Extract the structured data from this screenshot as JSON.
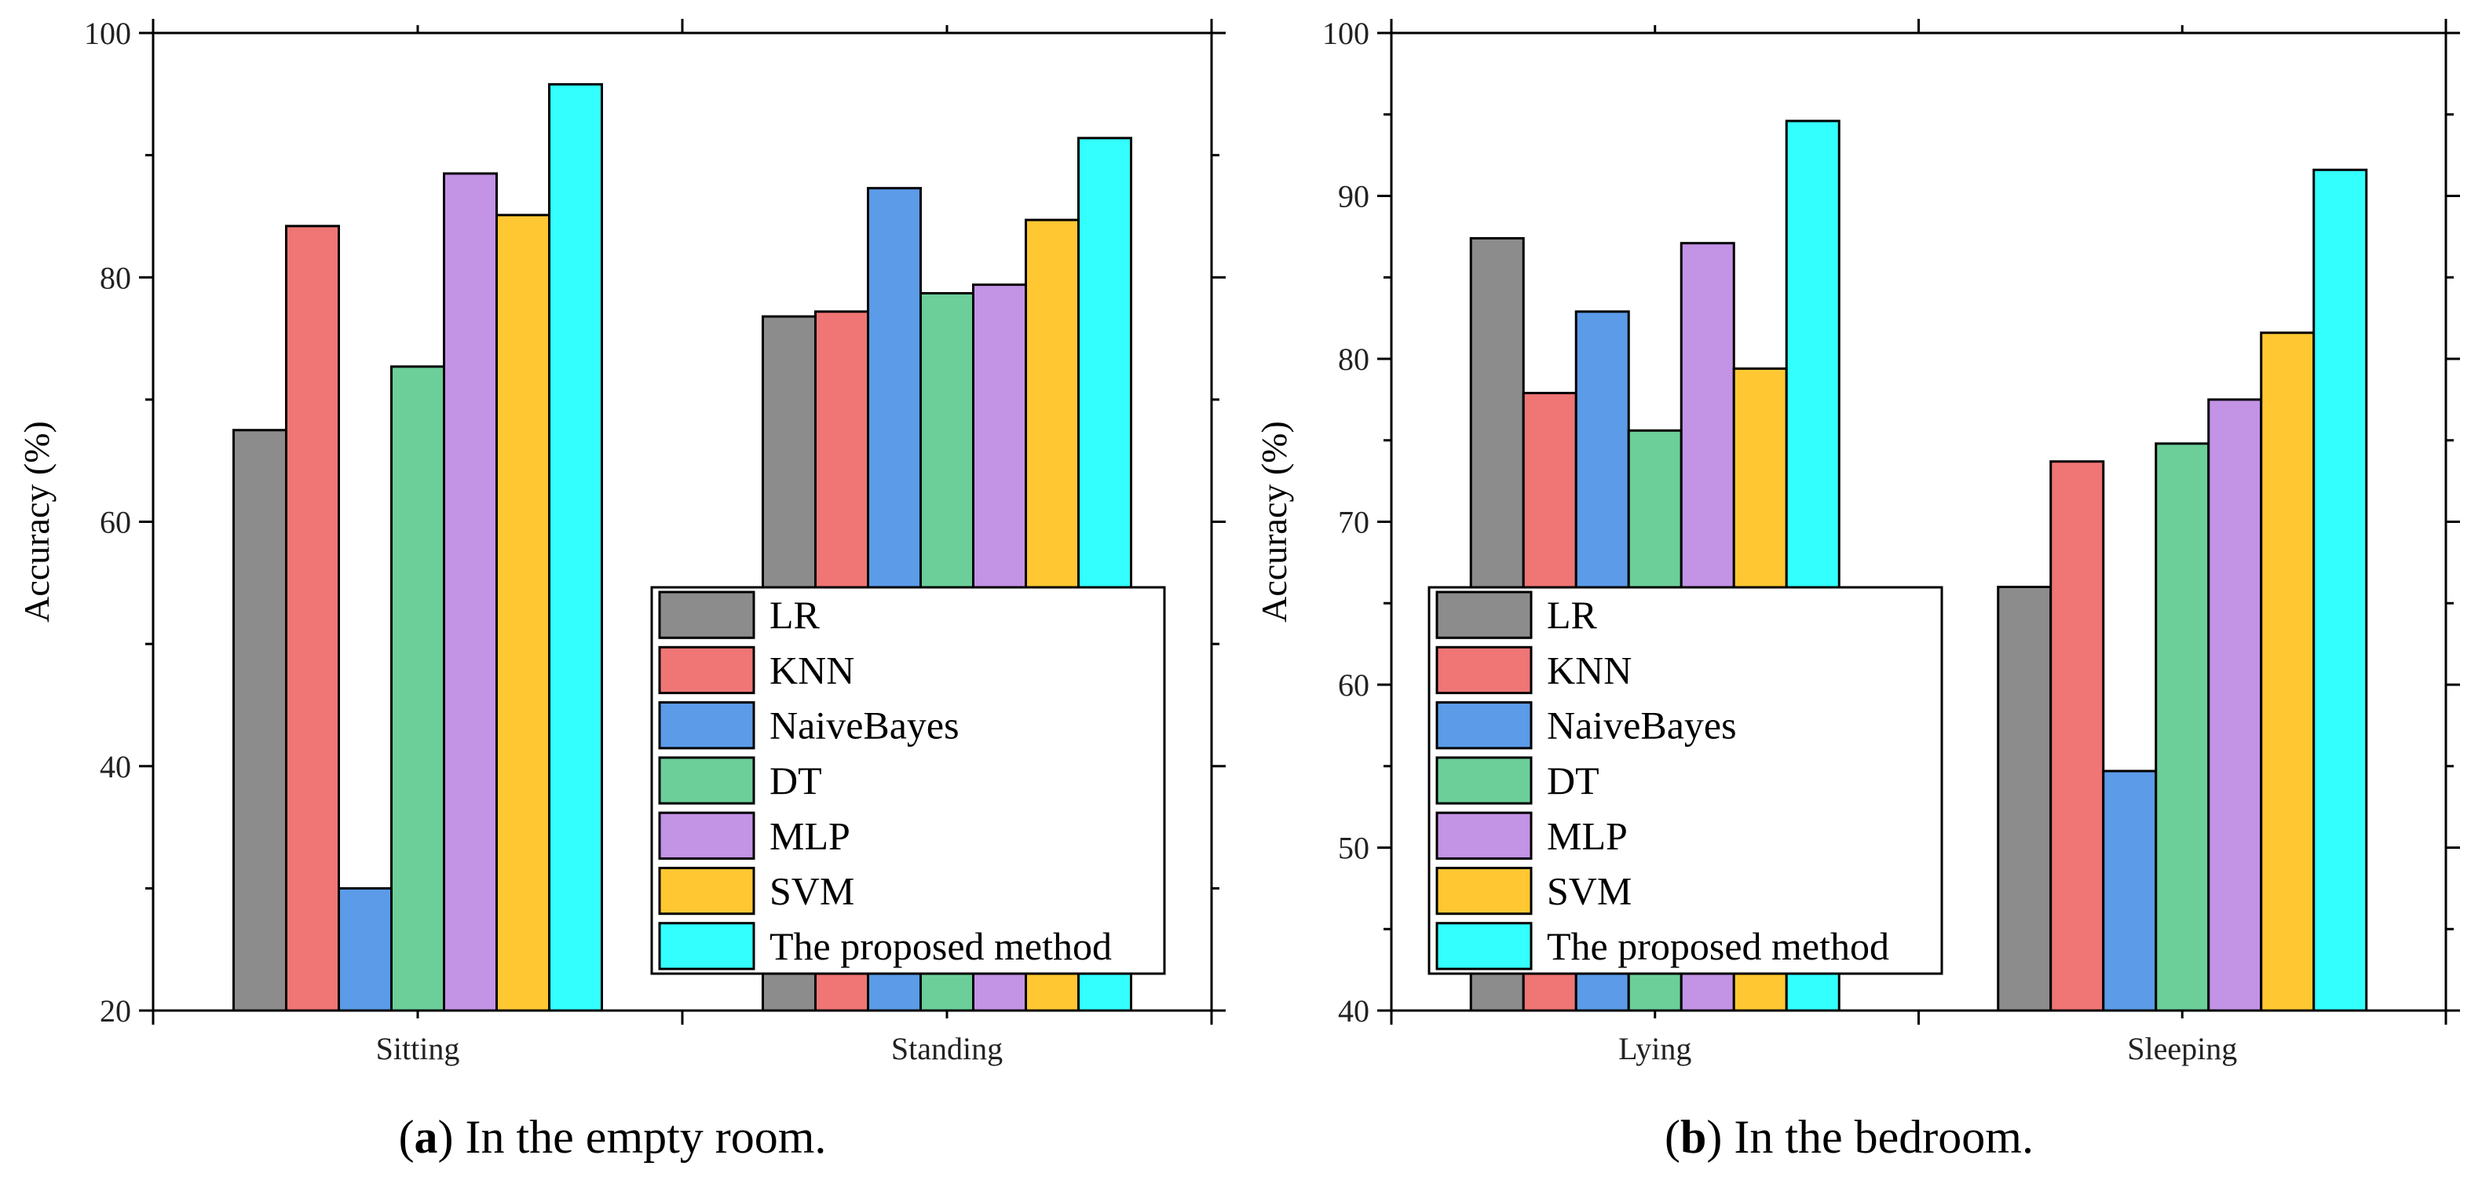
{
  "chart_data": [
    {
      "type": "bar",
      "caption": {
        "letter": "a",
        "text": "In the empty room."
      },
      "ylabel": "Accuracy (%)",
      "xlabel": "",
      "ylim": [
        20,
        100
      ],
      "yticks": [
        20,
        40,
        60,
        80,
        100
      ],
      "categories": [
        "Sitting",
        "Standing"
      ],
      "series": [
        {
          "name": "LR",
          "color": "#8c8c8c",
          "values": [
            67.5,
            76.8
          ]
        },
        {
          "name": "KNN",
          "color": "#f07575",
          "values": [
            84.2,
            77.2
          ]
        },
        {
          "name": "NaiveBayes",
          "color": "#5b9be8",
          "values": [
            30.0,
            87.3
          ]
        },
        {
          "name": "DT",
          "color": "#6ccf99",
          "values": [
            72.7,
            78.7
          ]
        },
        {
          "name": "MLP",
          "color": "#c393e6",
          "values": [
            88.5,
            79.4
          ]
        },
        {
          "name": "SVM",
          "color": "#ffc832",
          "values": [
            85.1,
            84.7
          ]
        },
        {
          "name": "The proposed method",
          "color": "#33ffff",
          "values": [
            95.8,
            91.4
          ]
        }
      ],
      "legend_position": "bottom-right"
    },
    {
      "type": "bar",
      "caption": {
        "letter": "b",
        "text": "In the bedroom."
      },
      "ylabel": "Accuracy (%)",
      "xlabel": "",
      "ylim": [
        40,
        100
      ],
      "yticks": [
        40,
        50,
        60,
        70,
        80,
        90,
        100
      ],
      "categories": [
        "Lying",
        "Sleeping"
      ],
      "series": [
        {
          "name": "LR",
          "color": "#8c8c8c",
          "values": [
            87.4,
            66.0
          ]
        },
        {
          "name": "KNN",
          "color": "#f07575",
          "values": [
            77.9,
            73.7
          ]
        },
        {
          "name": "NaiveBayes",
          "color": "#5b9be8",
          "values": [
            82.9,
            54.7
          ]
        },
        {
          "name": "DT",
          "color": "#6ccf99",
          "values": [
            75.6,
            74.8
          ]
        },
        {
          "name": "MLP",
          "color": "#c393e6",
          "values": [
            87.1,
            77.5
          ]
        },
        {
          "name": "SVM",
          "color": "#ffc832",
          "values": [
            79.4,
            81.6
          ]
        },
        {
          "name": "The proposed method",
          "color": "#33ffff",
          "values": [
            94.6,
            91.6
          ]
        }
      ],
      "legend_position": "bottom-right"
    }
  ]
}
